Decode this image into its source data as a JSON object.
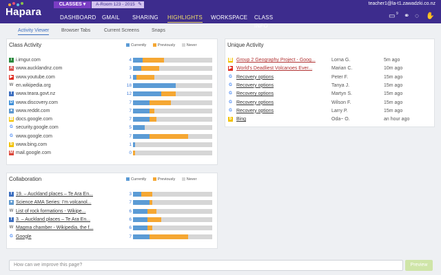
{
  "header": {
    "logo": "Hapara",
    "classes_label": "CLASSES",
    "room_label": "A-Room 123 - 2015",
    "user": "teacher1@la-t1.zawadzki.co.nz",
    "nav": [
      "DASHBOARD",
      "GMAIL",
      "SHARING",
      "HIGHLIGHTS",
      "WORKSPACE",
      "CLASS INFO"
    ],
    "active_nav": "HIGHLIGHTS",
    "notification_count": "9"
  },
  "subtabs": [
    "Activity Viewer",
    "Browser Tabs",
    "Current Screens",
    "Snaps"
  ],
  "legend": {
    "currently": "Currently",
    "previously": "Previously",
    "never": "Never",
    "colors": {
      "currently": "#5b9bd5",
      "previously": "#f5a733",
      "never": "#d6d6d6"
    }
  },
  "class_activity": {
    "title": "Class Activity",
    "rows": [
      {
        "site": "i.imgur.com",
        "count": "4",
        "icon": "imgur-icon",
        "color": "#2b8a3e",
        "cur": 0.12,
        "prev": 0.27
      },
      {
        "site": "www.aucklandnz.com",
        "count": "3",
        "icon": "aucklandnz-icon",
        "color": "#d9534f",
        "cur": 0.1,
        "prev": 0.23
      },
      {
        "site": "www.youtube.com",
        "count": "1",
        "icon": "youtube-icon",
        "color": "#e02b20",
        "cur": 0.04,
        "prev": 0.23
      },
      {
        "site": "en.wikipedia.org",
        "count": "18",
        "icon": "wikipedia-icon",
        "color": "#777777",
        "cur": 0.54,
        "prev": 0.0
      },
      {
        "site": "www.teara.govt.nz",
        "count": "12",
        "icon": "teara-icon",
        "color": "#3d6fbf",
        "cur": 0.36,
        "prev": 0.18
      },
      {
        "site": "www.discovery.com",
        "count": "7",
        "icon": "discovery-icon",
        "color": "#3d8fd9",
        "cur": 0.21,
        "prev": 0.27
      },
      {
        "site": "www.reddit.com",
        "count": "7",
        "icon": "reddit-icon",
        "color": "#5f99cf",
        "cur": 0.21,
        "prev": 0.06
      },
      {
        "site": "docs.google.com",
        "count": "7",
        "icon": "docs-icon",
        "color": "#f2c200",
        "cur": 0.21,
        "prev": 0.09
      },
      {
        "site": "security.google.com",
        "count": "5",
        "icon": "google-icon",
        "color": "#4285f4",
        "cur": 0.15,
        "prev": 0.0
      },
      {
        "site": "www.google.com",
        "count": "7",
        "icon": "google-icon",
        "color": "#4285f4",
        "cur": 0.21,
        "prev": 0.49
      },
      {
        "site": "www.bing.com",
        "count": "1",
        "icon": "bing-icon",
        "color": "#f2c200",
        "cur": 0.03,
        "prev": 0.0
      },
      {
        "site": "mail.google.com",
        "count": "0",
        "icon": "gmail-icon",
        "color": "#db4437",
        "cur": 0.0,
        "prev": 0.03
      }
    ]
  },
  "collaboration": {
    "title": "Collaboration",
    "rows": [
      {
        "site": "19. – Auckland places – Te Ara En...",
        "count": "3",
        "icon": "teara-icon",
        "color": "#3d6fbf",
        "cur": 0.1,
        "prev": 0.14
      },
      {
        "site": "Science AMA Series: I'm volcanol...",
        "count": "7",
        "icon": "reddit-icon",
        "color": "#5f99cf",
        "cur": 0.21,
        "prev": 0.03
      },
      {
        "site": "List of rock formations - Wikipe...",
        "count": "6",
        "icon": "wikipedia-icon",
        "color": "#777777",
        "cur": 0.18,
        "prev": 0.12
      },
      {
        "site": "3. – Auckland places – Te Ara En...",
        "count": "6",
        "icon": "teara-icon",
        "color": "#3d6fbf",
        "cur": 0.18,
        "prev": 0.18
      },
      {
        "site": "Magma chamber - Wikipedia, the f...",
        "count": "6",
        "icon": "wikipedia-icon",
        "color": "#777777",
        "cur": 0.18,
        "prev": 0.06
      },
      {
        "site": "Google",
        "count": "7",
        "icon": "google-icon",
        "color": "#4285f4",
        "cur": 0.21,
        "prev": 0.49
      }
    ]
  },
  "unique_activity": {
    "title": "Unique Activity",
    "rows": [
      {
        "site": "Group 2 Geography Project - Goog...",
        "user": "Lorna G.",
        "time": "5m ago",
        "icon": "docs-icon",
        "color": "#f2c200"
      },
      {
        "site": "World's Deadliest Volcanoes Ever...",
        "user": "Marian C.",
        "time": "10m ago",
        "icon": "youtube-icon",
        "color": "#e02b20"
      },
      {
        "site": "Recovery options",
        "user": "Peter F.",
        "time": "15m ago",
        "icon": "google-icon",
        "color": "#4285f4"
      },
      {
        "site": "Recovery options",
        "user": "Tanya J.",
        "time": "15m ago",
        "icon": "google-icon",
        "color": "#4285f4"
      },
      {
        "site": "Recovery options",
        "user": "Martyn S.",
        "time": "15m ago",
        "icon": "google-icon",
        "color": "#4285f4"
      },
      {
        "site": "Recovery options",
        "user": "Wilson F.",
        "time": "15m ago",
        "icon": "google-icon",
        "color": "#4285f4"
      },
      {
        "site": "Recovery options",
        "user": "Larry P.",
        "time": "15m ago",
        "icon": "google-icon",
        "color": "#4285f4"
      },
      {
        "site": "Bing",
        "user": "Oda~ O.",
        "time": "an hour ago",
        "icon": "bing-icon",
        "color": "#f2c200"
      }
    ]
  },
  "feedback": {
    "placeholder": "How can we improve this page?",
    "button": "Preview"
  }
}
